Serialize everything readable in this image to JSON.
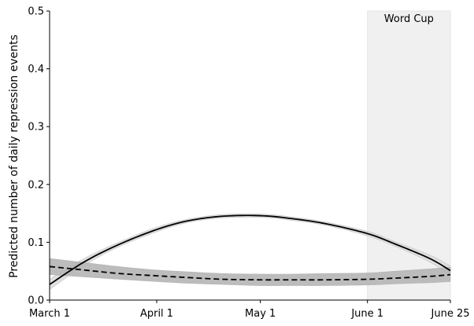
{
  "chart_data": {
    "type": "line",
    "title": "",
    "xlabel": "",
    "ylabel": "Predicted number of daily repression events",
    "x_range": [
      0,
      116
    ],
    "ylim": [
      0,
      0.5
    ],
    "x_ticks": [
      {
        "pos": 0,
        "label": "March 1"
      },
      {
        "pos": 31,
        "label": "April 1"
      },
      {
        "pos": 61,
        "label": "May 1"
      },
      {
        "pos": 92,
        "label": "June 1"
      },
      {
        "pos": 116,
        "label": "June 25"
      }
    ],
    "y_ticks": [
      0.0,
      0.1,
      0.2,
      0.3,
      0.4,
      0.5
    ],
    "y_tick_labels": [
      "0.0",
      "0.1",
      "0.2",
      "0.3",
      "0.4",
      "0.5"
    ],
    "grid": false,
    "shaded_region": {
      "x_start": 92,
      "x_end": 116,
      "label": "Word Cup",
      "color": "#f0f0f0"
    },
    "series": [
      {
        "style": "solid",
        "color": "#000000",
        "band_color": "#dddddd",
        "x": [
          0,
          10,
          20,
          31,
          40,
          50,
          61,
          70,
          80,
          92,
          100,
          110,
          116
        ],
        "y": [
          0.027,
          0.066,
          0.096,
          0.122,
          0.137,
          0.145,
          0.146,
          0.141,
          0.132,
          0.115,
          0.097,
          0.072,
          0.051
        ],
        "lower": [
          0.018,
          0.06,
          0.092,
          0.118,
          0.134,
          0.142,
          0.143,
          0.138,
          0.129,
          0.111,
          0.093,
          0.066,
          0.043
        ],
        "upper": [
          0.036,
          0.072,
          0.1,
          0.126,
          0.14,
          0.148,
          0.149,
          0.144,
          0.135,
          0.119,
          0.101,
          0.078,
          0.059
        ]
      },
      {
        "style": "dashed",
        "color": "#000000",
        "band_color": "#b5b5b5",
        "x": [
          0,
          10,
          20,
          31,
          40,
          50,
          61,
          70,
          80,
          92,
          100,
          110,
          116
        ],
        "y": [
          0.058,
          0.052,
          0.046,
          0.042,
          0.039,
          0.036,
          0.035,
          0.035,
          0.035,
          0.036,
          0.038,
          0.041,
          0.044
        ],
        "lower": [
          0.044,
          0.04,
          0.036,
          0.032,
          0.029,
          0.027,
          0.025,
          0.025,
          0.025,
          0.026,
          0.028,
          0.03,
          0.032
        ],
        "upper": [
          0.072,
          0.065,
          0.058,
          0.052,
          0.049,
          0.046,
          0.045,
          0.045,
          0.046,
          0.047,
          0.05,
          0.054,
          0.057
        ]
      }
    ],
    "reference_line": {
      "y": 0,
      "style": "dotted",
      "color": "#000000"
    }
  }
}
